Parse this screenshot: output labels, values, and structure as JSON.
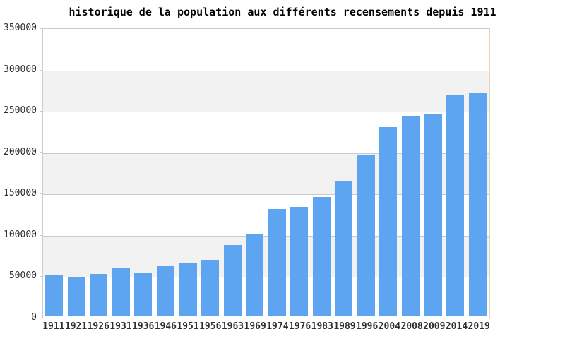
{
  "chart_data": {
    "type": "bar",
    "title": "historique de la population aux différents recensements depuis 1911",
    "categories": [
      "1911",
      "1921",
      "1926",
      "1931",
      "1936",
      "1946",
      "1951",
      "1956",
      "1963",
      "1969",
      "1974",
      "1976",
      "1983",
      "1989",
      "1996",
      "2004",
      "2008",
      "2009",
      "2014",
      "2019"
    ],
    "values": [
      50500,
      48000,
      52000,
      58500,
      53000,
      61000,
      65500,
      68480,
      86519,
      100579,
      131000,
      133233,
      145368,
      164173,
      196836,
      230789,
      244600,
      245580,
      268767,
      271407
    ],
    "xlabel": "",
    "ylabel": "",
    "ylim": [
      0,
      350000
    ],
    "y_ticks": [
      0,
      50000,
      100000,
      150000,
      200000,
      250000,
      300000,
      350000
    ],
    "y_tick_labels": [
      "0",
      "50000",
      "100000",
      "150000",
      "200000",
      "250000",
      "300000",
      "350000"
    ],
    "grid": true,
    "legend": false,
    "colors": {
      "bar": "#5da5f0",
      "band_even": "#ffffff",
      "band_odd": "#f2f2f2",
      "gridline": "#c9c9c9",
      "border": "#cccccc",
      "right_border": "#ecd5b4",
      "baseline": "#ababab",
      "label": "#2e2e2e",
      "title": "#000000",
      "background": "#ffffff"
    }
  }
}
